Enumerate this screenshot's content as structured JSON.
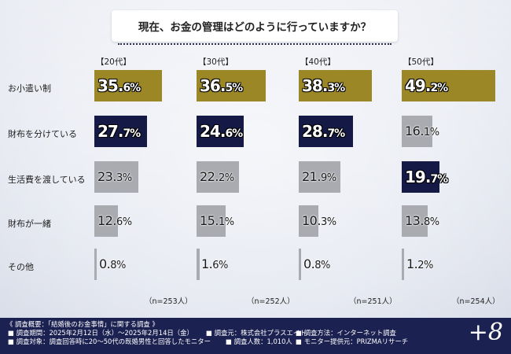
{
  "colors": {
    "gold": "#9b8725",
    "navy": "#141a45",
    "gray": "#a9abb1",
    "footer_bg": "#1b2150"
  },
  "chart_data": {
    "type": "bar",
    "title": "現在、お金の管理はどのように行っていますか？",
    "groups": [
      {
        "header": "【20代】",
        "n": "（n=253人）"
      },
      {
        "header": "【30代】",
        "n": "（n=252人）"
      },
      {
        "header": "【40代】",
        "n": "（n=251人）"
      },
      {
        "header": "【50代】",
        "n": "（n=254人）"
      }
    ],
    "categories": [
      "お小遣い制",
      "財布を分けている",
      "生活費を渡している",
      "財布が一緒",
      "その他"
    ],
    "series": [
      {
        "name": "【20代】",
        "values": [
          35.6,
          27.7,
          23.3,
          12.6,
          0.8
        ],
        "styles": [
          "gold",
          "navy",
          "gray",
          "gray",
          "gray"
        ]
      },
      {
        "name": "【30代】",
        "values": [
          36.5,
          24.6,
          22.2,
          15.1,
          1.6
        ],
        "styles": [
          "gold",
          "navy",
          "gray",
          "gray",
          "gray"
        ]
      },
      {
        "name": "【40代】",
        "values": [
          38.3,
          28.7,
          21.9,
          10.3,
          0.8
        ],
        "styles": [
          "gold",
          "navy",
          "gray",
          "gray",
          "gray"
        ]
      },
      {
        "name": "【50代】",
        "values": [
          49.2,
          16.1,
          19.7,
          13.8,
          1.2
        ],
        "styles": [
          "gold",
          "gray",
          "navy",
          "gray",
          "gray"
        ]
      }
    ],
    "max_value": 50,
    "value_suffix": "%"
  },
  "footer": {
    "line1": "《 調査概要：「結婚後のお金事情」に関する調査 》",
    "period": "■ 調査期間：2025年2月12日（水）～2025年2月14日（金）",
    "source": "■ 調査元：株式会社プラスエイト",
    "method": "■ 調査方法：インターネット調査",
    "target": "■ 調査対象：調査回答時に20～50代の既婚男性と回答したモニター",
    "count": "■ 調査人数：1,010人",
    "provider": "■ モニター提供元：PRIZMAリサーチ"
  },
  "logo": "+8"
}
